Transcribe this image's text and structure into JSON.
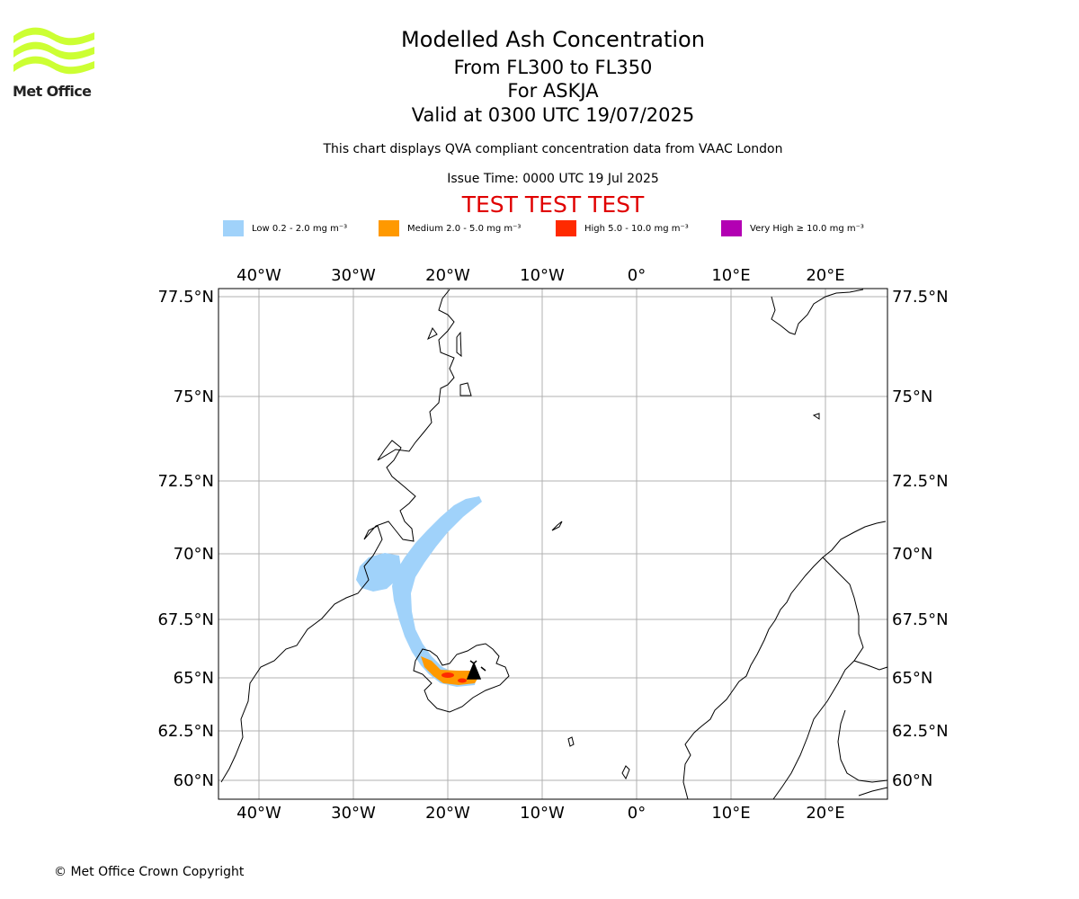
{
  "logo": {
    "text": "Met Office",
    "color": "#ccff33"
  },
  "title": {
    "line1": "Modelled Ash Concentration",
    "line2": "From FL300 to FL350",
    "line3": "For ASKJA",
    "line4": "Valid at 0300 UTC 19/07/2025"
  },
  "subtitle": "This chart displays QVA compliant concentration data from VAAC London",
  "issue_time": "Issue Time: 0000 UTC 19 Jul 2025",
  "test_banner": "TEST TEST TEST",
  "legend": [
    {
      "label": "Low 0.2 - 2.0 mg m⁻³",
      "color": "#a0d2fa"
    },
    {
      "label": "Medium 2.0 - 5.0 mg m⁻³",
      "color": "#ff9900"
    },
    {
      "label": "High 5.0 - 10.0 mg m⁻³",
      "color": "#ff2a00"
    },
    {
      "label": "Very High ≥ 10.0 mg m⁻³",
      "color": "#b300b3"
    }
  ],
  "map": {
    "lon_labels": [
      "40°W",
      "30°W",
      "20°W",
      "10°W",
      "0°",
      "10°E",
      "20°E"
    ],
    "lat_labels": [
      "77.5°N",
      "75°N",
      "72.5°N",
      "70°N",
      "67.5°N",
      "65°N",
      "62.5°N",
      "60°N"
    ],
    "volcano": "ASKJA"
  },
  "copyright": "© Met Office Crown Copyright"
}
